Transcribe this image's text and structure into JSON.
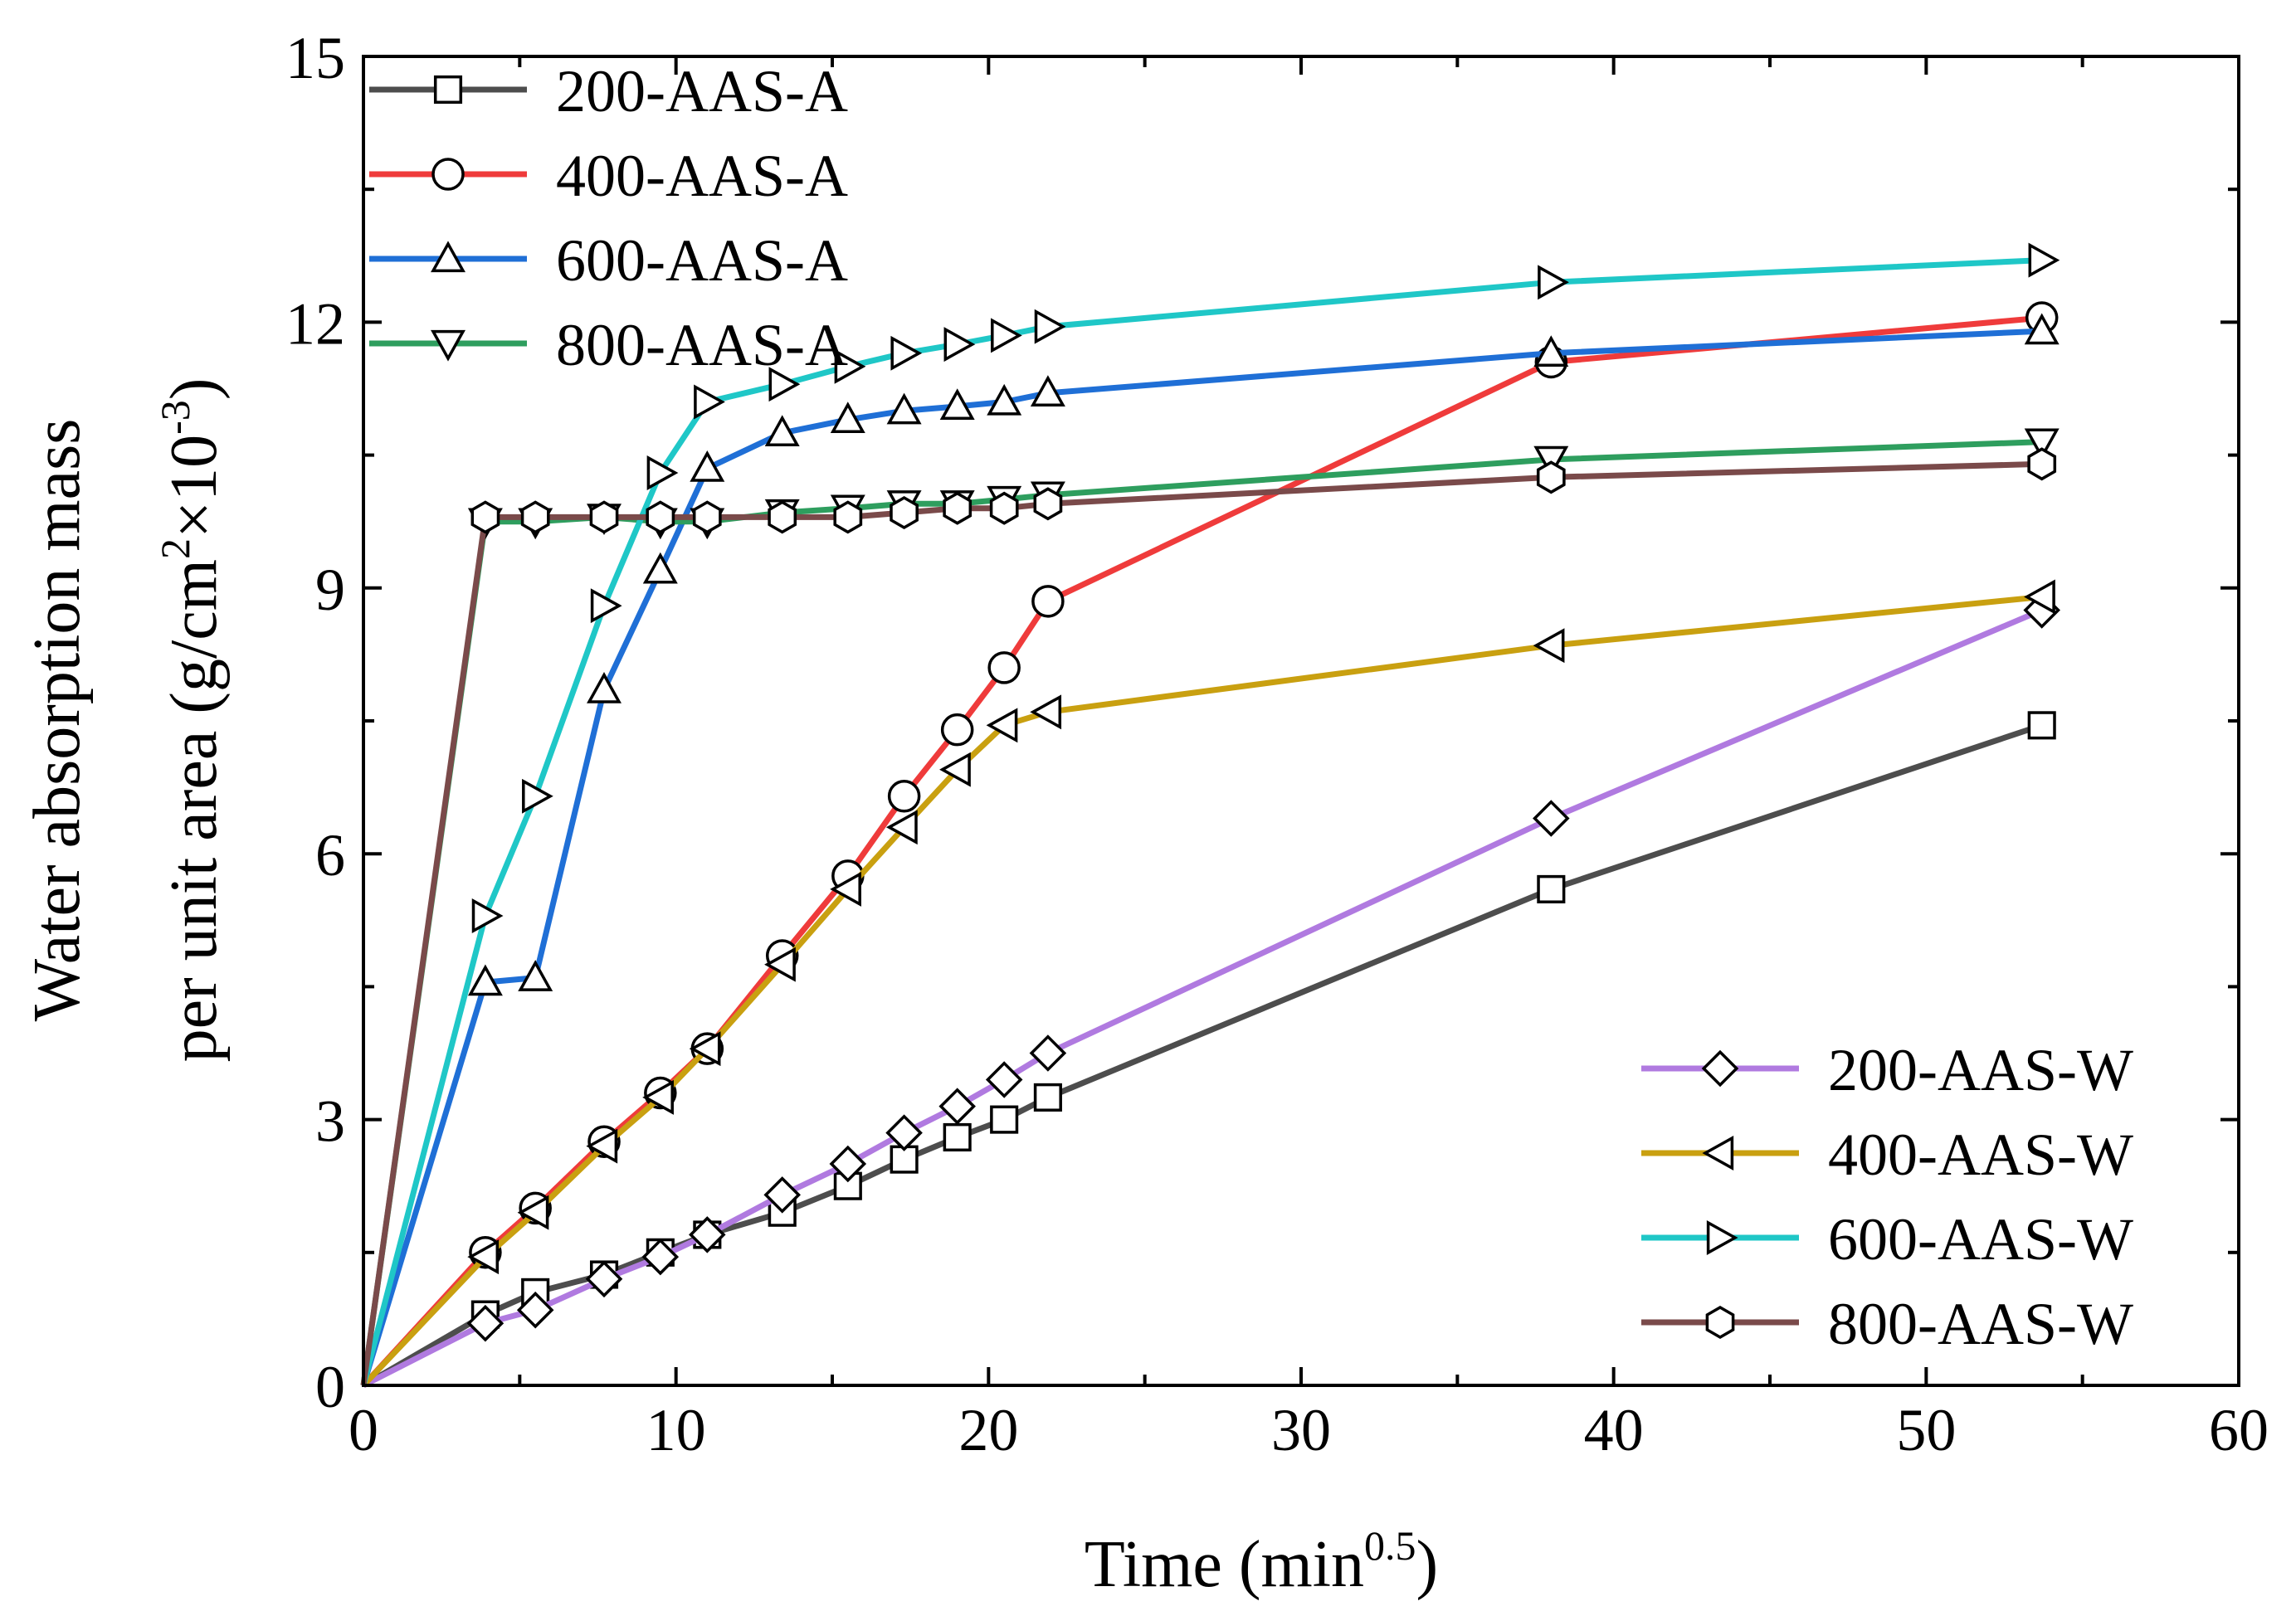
{
  "chart_data": {
    "type": "line",
    "xlabel": "Time (min",
    "xlabel_sup": "0.5",
    "xlabel_end": ")",
    "ylabel_line1": "Water absorption mass",
    "ylabel_line2_pre": "per unit area (g/cm",
    "ylabel_line2_sup1": "2",
    "ylabel_line2_mid": "×10",
    "ylabel_line2_sup2": "-3",
    "ylabel_line2_end": ")",
    "xlim": [
      0,
      60
    ],
    "ylim": [
      0,
      15
    ],
    "xticks": [
      0,
      10,
      20,
      30,
      40,
      50,
      60
    ],
    "xtick_labels": [
      "0",
      "10",
      "20",
      "30",
      "40",
      "50",
      "60"
    ],
    "yticks": [
      0,
      3,
      6,
      9,
      12,
      15
    ],
    "ytick_labels": [
      "0",
      "3",
      "6",
      "9",
      "12",
      "15"
    ],
    "legend_top_left": [
      "200-AAS-A",
      "400-AAS-A",
      "600-AAS-A",
      "800-AAS-A"
    ],
    "legend_bottom_right": [
      "200-AAS-W",
      "400-AAS-W",
      "600-AAS-W",
      "800-AAS-W"
    ],
    "series": [
      {
        "name": "200-AAS-A",
        "color": "#4d4d4d",
        "marker": "square",
        "x": [
          0,
          3.9,
          5.5,
          7.7,
          9.5,
          11,
          13.4,
          15.5,
          17.3,
          19,
          20.5,
          21.9,
          38,
          53.7
        ],
        "y": [
          0,
          0.8,
          1.05,
          1.25,
          1.5,
          1.7,
          1.95,
          2.25,
          2.55,
          2.8,
          3.0,
          3.25,
          5.6,
          7.45
        ]
      },
      {
        "name": "400-AAS-A",
        "color": "#ef3b3b",
        "marker": "circle",
        "x": [
          0,
          3.9,
          5.5,
          7.7,
          9.5,
          11,
          13.4,
          15.5,
          17.3,
          19,
          20.5,
          21.9,
          38,
          53.7
        ],
        "y": [
          0,
          1.5,
          2.0,
          2.75,
          3.3,
          3.8,
          4.85,
          5.75,
          6.65,
          7.4,
          8.1,
          8.85,
          11.55,
          12.05
        ]
      },
      {
        "name": "600-AAS-A",
        "color": "#1f6fd6",
        "marker": "triangle-up",
        "x": [
          0,
          3.9,
          5.5,
          7.7,
          9.5,
          11,
          13.4,
          15.5,
          17.3,
          19,
          20.5,
          21.9,
          38,
          53.7
        ],
        "y": [
          0,
          4.55,
          4.6,
          7.85,
          9.2,
          10.35,
          10.75,
          10.9,
          11.0,
          11.05,
          11.1,
          11.2,
          11.65,
          11.9
        ]
      },
      {
        "name": "800-AAS-A",
        "color": "#2e9e5e",
        "marker": "triangle-down",
        "x": [
          0,
          3.9,
          5.5,
          7.7,
          9.5,
          11,
          13.4,
          15.5,
          17.3,
          19,
          20.5,
          21.9,
          38,
          53.7
        ],
        "y": [
          0,
          9.75,
          9.75,
          9.8,
          9.75,
          9.75,
          9.85,
          9.9,
          9.95,
          9.95,
          10.0,
          10.05,
          10.45,
          10.65
        ]
      },
      {
        "name": "200-AAS-W",
        "color": "#b07ae0",
        "marker": "diamond",
        "x": [
          0,
          3.9,
          5.5,
          7.7,
          9.5,
          11,
          13.4,
          15.5,
          17.3,
          19,
          20.5,
          21.9,
          38,
          53.7
        ],
        "y": [
          0,
          0.7,
          0.85,
          1.2,
          1.45,
          1.7,
          2.15,
          2.5,
          2.85,
          3.15,
          3.45,
          3.75,
          6.4,
          8.75
        ]
      },
      {
        "name": "400-AAS-W",
        "color": "#c9a010",
        "marker": "triangle-left",
        "x": [
          0,
          3.9,
          5.5,
          7.7,
          9.5,
          11,
          13.4,
          15.5,
          17.3,
          19,
          20.5,
          21.9,
          38,
          53.7
        ],
        "y": [
          0,
          1.45,
          1.95,
          2.7,
          3.25,
          3.8,
          4.75,
          5.6,
          6.3,
          6.95,
          7.45,
          7.6,
          8.35,
          8.9
        ]
      },
      {
        "name": "600-AAS-W",
        "color": "#1fc7c7",
        "marker": "triangle-right",
        "x": [
          0,
          3.9,
          5.5,
          7.7,
          9.5,
          11,
          13.4,
          15.5,
          17.3,
          19,
          20.5,
          21.9,
          38,
          53.7
        ],
        "y": [
          0,
          5.3,
          6.65,
          8.8,
          10.3,
          11.1,
          11.3,
          11.5,
          11.65,
          11.75,
          11.85,
          11.95,
          12.45,
          12.7
        ]
      },
      {
        "name": "800-AAS-W",
        "color": "#7a4a4a",
        "marker": "hexagon",
        "x": [
          0,
          3.9,
          5.5,
          7.7,
          9.5,
          11,
          13.4,
          15.5,
          17.3,
          19,
          20.5,
          21.9,
          38,
          53.7
        ],
        "y": [
          0,
          9.8,
          9.8,
          9.8,
          9.8,
          9.8,
          9.8,
          9.8,
          9.85,
          9.9,
          9.9,
          9.95,
          10.25,
          10.4
        ]
      }
    ]
  }
}
